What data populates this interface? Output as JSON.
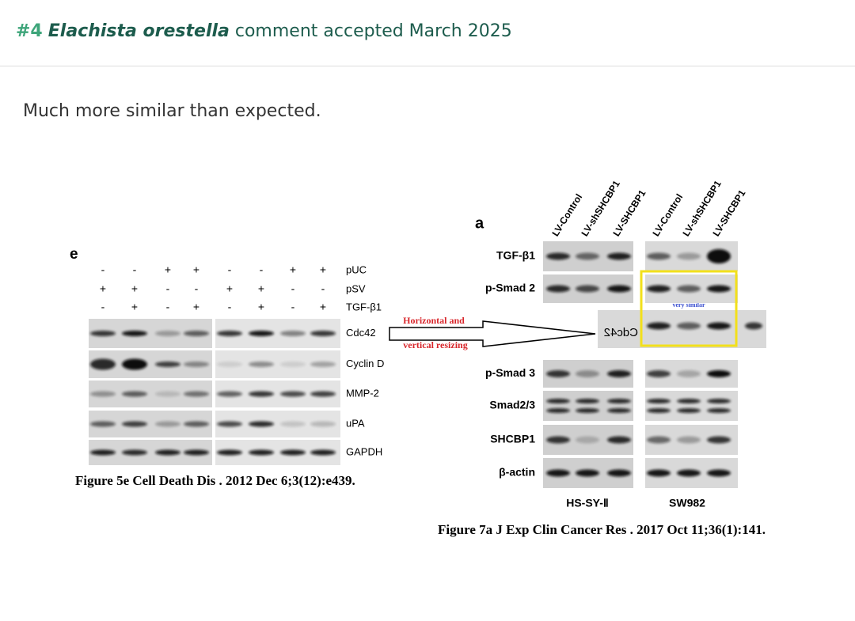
{
  "header": {
    "number": "#4",
    "species": "Elachista orestella",
    "status": "comment accepted March 2025"
  },
  "comment": {
    "text": "Much more similar than expected."
  },
  "figure_left": {
    "panel_letter": "e",
    "treatments": [
      {
        "name": "pUC",
        "signs": [
          "-",
          "-",
          "+",
          "+",
          "-",
          "-",
          "+",
          "+"
        ]
      },
      {
        "name": "pSV",
        "signs": [
          "+",
          "+",
          "-",
          "-",
          "+",
          "+",
          "-",
          "-"
        ]
      },
      {
        "name": "TGF-β1",
        "signs": [
          "-",
          "+",
          "-",
          "+",
          "-",
          "+",
          "-",
          "+"
        ]
      }
    ],
    "proteins": [
      "Cdc42",
      "Cyclin D",
      "MMP-2",
      "uPA",
      "GAPDH"
    ],
    "caption": "Figure 5e Cell Death Dis . 2012 Dec 6;3(12):e439."
  },
  "annotation": {
    "lines": [
      "Horizontal and",
      "vertical resizing"
    ]
  },
  "figure_right": {
    "panel_letter": "a",
    "lanes": [
      "LV-Control",
      "LV-shSHCBP1",
      "LV-SHCBP1",
      "LV-Control",
      "LV-shSHCBP1",
      "LV-SHCBP1"
    ],
    "proteins": [
      "TGF-β1",
      "p-Smad 2",
      "p-Smad 3",
      "Smad2/3",
      "SHCBP1",
      "β-actin"
    ],
    "mirrored_label": "Cdc42",
    "note": "very similar",
    "cell_lines": [
      "HS-SY-Ⅱ",
      "SW982"
    ],
    "caption": "Figure 7a J Exp Clin Cancer Res . 2017 Oct 11;36(1):141."
  }
}
